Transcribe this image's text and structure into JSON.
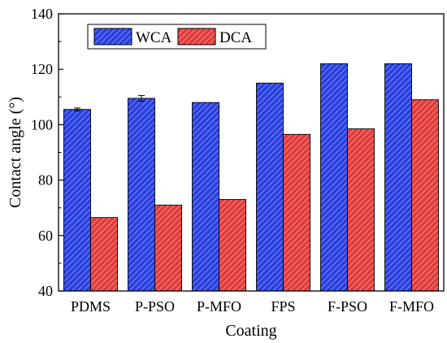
{
  "chart_data": {
    "type": "bar",
    "categories": [
      "PDMS",
      "P-PSO",
      "P-MFO",
      "FPS",
      "F-PSO",
      "F-MFO"
    ],
    "series": [
      {
        "name": "WCA",
        "values": [
          105.5,
          109.5,
          108,
          115,
          122,
          122
        ],
        "errors": [
          0.5,
          1.0,
          0,
          0,
          0,
          0
        ],
        "color": "#2a3fe0",
        "hatch_color": "#8fa0f5"
      },
      {
        "name": "DCA",
        "values": [
          66.5,
          71,
          73,
          96.5,
          98.5,
          109
        ],
        "errors": [
          0,
          0,
          0,
          0,
          0,
          0
        ],
        "color": "#e23b3b",
        "hatch_color": "#f3a1a1"
      }
    ],
    "xlabel": "Coating",
    "ylabel": "Contact angle (°)",
    "ylim": [
      40,
      140
    ],
    "yticks": [
      "40",
      "60",
      "80",
      "100",
      "120",
      "140"
    ],
    "legend": {
      "position": "top-left",
      "orientation": "horizontal"
    },
    "grid": false
  }
}
